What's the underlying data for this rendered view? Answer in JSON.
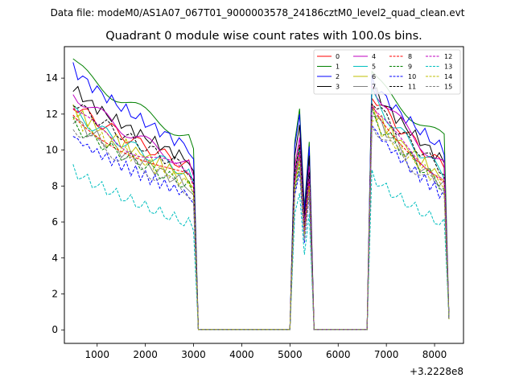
{
  "chart_data": {
    "type": "line",
    "suptitle": "Data file: modeM0/AS1A07_067T01_9000003578_24186cztM0_level2_quad_clean.evt",
    "title": "Quadrant 0 module wise count rates with 100.0s bins.",
    "xlabel": "",
    "ylabel": "",
    "x_offset_label": "+3.2228e8",
    "xlim": [
      320,
      8600
    ],
    "ylim": [
      -0.75,
      15.75
    ],
    "x_ticks": [
      1000,
      2000,
      3000,
      4000,
      5000,
      6000,
      7000,
      8000
    ],
    "y_ticks": [
      0,
      2,
      4,
      6,
      8,
      10,
      12,
      14
    ],
    "legend_position": "upper right",
    "segments": [
      {
        "x0": 500,
        "x1": 3000,
        "decay": 0.25
      },
      {
        "x0": 3100,
        "x1": 5000,
        "zero": true
      },
      {
        "x0": 5100,
        "x1": 5400,
        "shape": [
          0.85,
          1.0,
          0.55
        ]
      },
      {
        "x0": 5500,
        "x1": 6600,
        "zero": true
      },
      {
        "x0": 6700,
        "x1": 8300,
        "decay": 0.25
      }
    ],
    "series": [
      {
        "name": "0",
        "color": "#ff0000",
        "dash": "solid",
        "start": 12.6,
        "end": 9.0,
        "peak": 10.3,
        "second": 13.2
      },
      {
        "name": "1",
        "color": "#008000",
        "dash": "solid",
        "start": 14.9,
        "end": 10.6,
        "peak": 12.3,
        "second": 14.2
      },
      {
        "name": "2",
        "color": "#0000ff",
        "dash": "solid",
        "start": 14.6,
        "end": 10.0,
        "peak": 12.0,
        "second": 13.9
      },
      {
        "name": "3",
        "color": "#000000",
        "dash": "solid",
        "start": 13.5,
        "end": 9.3,
        "peak": 11.4,
        "second": 13.6
      },
      {
        "name": "4",
        "color": "#bf00bf",
        "dash": "solid",
        "start": 13.3,
        "end": 9.0,
        "peak": 10.7,
        "second": 13.8
      },
      {
        "name": "5",
        "color": "#00bfbf",
        "dash": "solid",
        "start": 12.2,
        "end": 8.6,
        "peak": 10.1,
        "second": 13.1
      },
      {
        "name": "6",
        "color": "#bfbf00",
        "dash": "solid",
        "start": 12.4,
        "end": 8.3,
        "peak": 9.9,
        "second": 12.4
      },
      {
        "name": "7",
        "color": "#808080",
        "dash": "solid",
        "start": 11.8,
        "end": 7.9,
        "peak": 9.6,
        "second": 12.2
      },
      {
        "name": "8",
        "color": "#ff0000",
        "dash": "dashed",
        "start": 12.0,
        "end": 8.4,
        "peak": 9.8,
        "second": 12.6
      },
      {
        "name": "9",
        "color": "#008000",
        "dash": "dashed",
        "start": 11.5,
        "end": 7.9,
        "peak": 9.2,
        "second": 12.0
      },
      {
        "name": "10",
        "color": "#0000ff",
        "dash": "dashed",
        "start": 10.8,
        "end": 7.4,
        "peak": 8.8,
        "second": 11.4
      },
      {
        "name": "11",
        "color": "#000000",
        "dash": "dashed",
        "start": 12.8,
        "end": 8.8,
        "peak": 10.3,
        "second": 12.9
      },
      {
        "name": "12",
        "color": "#bf00bf",
        "dash": "dashed",
        "start": 12.2,
        "end": 8.5,
        "peak": 9.9,
        "second": 12.3
      },
      {
        "name": "13",
        "color": "#00bfbf",
        "dash": "dashed",
        "start": 8.9,
        "end": 5.8,
        "peak": 7.6,
        "second": 8.6
      },
      {
        "name": "14",
        "color": "#bfbf00",
        "dash": "dashed",
        "start": 11.9,
        "end": 8.0,
        "peak": 9.4,
        "second": 11.8
      },
      {
        "name": "15",
        "color": "#808080",
        "dash": "dashed",
        "start": 11.4,
        "end": 7.6,
        "peak": 9.0,
        "second": 11.6
      }
    ]
  }
}
